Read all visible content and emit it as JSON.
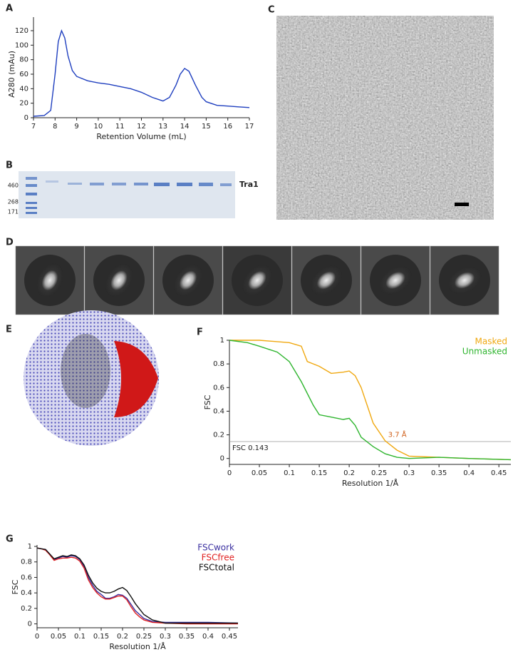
{
  "panel_labels": [
    "A",
    "B",
    "C",
    "D",
    "E",
    "F",
    "G"
  ],
  "gel": {
    "markers": [
      "460",
      "268",
      "171"
    ],
    "band_label": "Tra1"
  },
  "chart_data": [
    {
      "type": "line",
      "xlabel": "Retention Volume (mL)",
      "ylabel": "A280 (mAu)",
      "color": "#1f3fbf",
      "x": [
        7,
        7.5,
        7.8,
        8.0,
        8.15,
        8.3,
        8.45,
        8.6,
        8.8,
        9,
        9.5,
        10,
        10.5,
        11,
        11.5,
        12,
        12.5,
        13,
        13.3,
        13.6,
        13.8,
        14,
        14.2,
        14.5,
        14.8,
        15,
        15.5,
        16,
        16.5,
        17
      ],
      "values": [
        2,
        3,
        10,
        60,
        105,
        120,
        110,
        85,
        65,
        57,
        51,
        48,
        46,
        43,
        40,
        35,
        28,
        23,
        28,
        45,
        60,
        68,
        64,
        45,
        28,
        22,
        17,
        16,
        15,
        14
      ],
      "xlim": [
        7,
        17
      ],
      "xticks": [
        7,
        8,
        9,
        10,
        11,
        12,
        13,
        14,
        15,
        16,
        17
      ],
      "ylim": [
        0,
        120
      ],
      "yticks": [
        0,
        20,
        40,
        60,
        80,
        100,
        120
      ]
    },
    {
      "type": "line",
      "xlabel": "Resolution 1/Å",
      "ylabel": "FSC",
      "legend": "top-right",
      "threshold": {
        "value": 0.143,
        "label": "FSC 0.143"
      },
      "annotation": "3.7 Å",
      "series": [
        {
          "name": "Masked",
          "color": "#f0a810",
          "x": [
            0,
            0.05,
            0.1,
            0.12,
            0.13,
            0.15,
            0.17,
            0.19,
            0.2,
            0.21,
            0.22,
            0.23,
            0.24,
            0.26,
            0.28,
            0.3,
            0.35,
            0.4,
            0.47
          ],
          "values": [
            1,
            1,
            0.98,
            0.95,
            0.82,
            0.78,
            0.72,
            0.73,
            0.74,
            0.7,
            0.6,
            0.45,
            0.3,
            0.15,
            0.07,
            0.02,
            0.01,
            0,
            -0.01
          ]
        },
        {
          "name": "Unmasked",
          "color": "#2fb52f",
          "x": [
            0,
            0.03,
            0.05,
            0.08,
            0.1,
            0.12,
            0.14,
            0.15,
            0.17,
            0.19,
            0.2,
            0.21,
            0.22,
            0.24,
            0.26,
            0.28,
            0.3,
            0.35,
            0.4,
            0.47
          ],
          "values": [
            1,
            0.98,
            0.95,
            0.9,
            0.82,
            0.65,
            0.45,
            0.37,
            0.35,
            0.33,
            0.34,
            0.28,
            0.18,
            0.1,
            0.04,
            0.01,
            0,
            0.01,
            0,
            -0.01
          ]
        }
      ],
      "xlim": [
        0,
        0.47
      ],
      "xticks": [
        0,
        0.05,
        0.1,
        0.15,
        0.2,
        0.25,
        0.3,
        0.35,
        0.4,
        0.45
      ],
      "ylim": [
        -0.05,
        1
      ],
      "yticks": [
        0,
        0.2,
        0.4,
        0.6,
        0.8,
        1
      ]
    },
    {
      "type": "line",
      "xlabel": "Resolution 1/Å",
      "ylabel": "FSC",
      "legend": "top-right",
      "series": [
        {
          "name": "FSCwork",
          "color": "#3a2fa0",
          "x": [
            0,
            0.01,
            0.02,
            0.03,
            0.04,
            0.05,
            0.06,
            0.07,
            0.08,
            0.09,
            0.1,
            0.11,
            0.12,
            0.13,
            0.14,
            0.15,
            0.16,
            0.17,
            0.18,
            0.19,
            0.2,
            0.21,
            0.22,
            0.23,
            0.24,
            0.25,
            0.27,
            0.3,
            0.35,
            0.4,
            0.47
          ],
          "values": [
            0.98,
            0.97,
            0.96,
            0.9,
            0.83,
            0.85,
            0.87,
            0.86,
            0.88,
            0.87,
            0.83,
            0.74,
            0.6,
            0.5,
            0.42,
            0.38,
            0.33,
            0.33,
            0.35,
            0.38,
            0.37,
            0.33,
            0.25,
            0.17,
            0.12,
            0.07,
            0.03,
            0.02,
            0.02,
            0.02,
            0.01
          ]
        },
        {
          "name": "FSCfree",
          "color": "#e02020",
          "x": [
            0,
            0.01,
            0.02,
            0.03,
            0.04,
            0.05,
            0.06,
            0.07,
            0.08,
            0.09,
            0.1,
            0.11,
            0.12,
            0.13,
            0.14,
            0.15,
            0.16,
            0.17,
            0.18,
            0.19,
            0.2,
            0.21,
            0.22,
            0.23,
            0.24,
            0.25,
            0.27,
            0.3,
            0.35,
            0.4,
            0.47
          ],
          "values": [
            0.98,
            0.97,
            0.95,
            0.89,
            0.82,
            0.84,
            0.85,
            0.85,
            0.86,
            0.85,
            0.81,
            0.72,
            0.57,
            0.47,
            0.4,
            0.35,
            0.32,
            0.32,
            0.34,
            0.36,
            0.36,
            0.31,
            0.22,
            0.14,
            0.09,
            0.05,
            0.02,
            0.01,
            0,
            0,
            0
          ]
        },
        {
          "name": "FSCtotal",
          "color": "#111111",
          "x": [
            0,
            0.01,
            0.02,
            0.03,
            0.04,
            0.05,
            0.06,
            0.07,
            0.08,
            0.09,
            0.1,
            0.11,
            0.12,
            0.13,
            0.14,
            0.15,
            0.16,
            0.17,
            0.18,
            0.19,
            0.2,
            0.21,
            0.22,
            0.23,
            0.24,
            0.25,
            0.27,
            0.3,
            0.35,
            0.4,
            0.47
          ],
          "values": [
            0.98,
            0.97,
            0.96,
            0.9,
            0.84,
            0.86,
            0.88,
            0.87,
            0.89,
            0.88,
            0.84,
            0.76,
            0.63,
            0.53,
            0.46,
            0.42,
            0.4,
            0.4,
            0.42,
            0.45,
            0.47,
            0.43,
            0.35,
            0.26,
            0.19,
            0.12,
            0.05,
            0.01,
            0.01,
            0.01,
            0.01
          ]
        }
      ],
      "xlim": [
        0,
        0.47
      ],
      "xticks": [
        0,
        0.05,
        0.1,
        0.15,
        0.2,
        0.25,
        0.3,
        0.35,
        0.4,
        0.45
      ],
      "ylim": [
        -0.05,
        1
      ],
      "yticks": [
        0,
        0.2,
        0.4,
        0.6,
        0.8,
        1
      ]
    }
  ]
}
